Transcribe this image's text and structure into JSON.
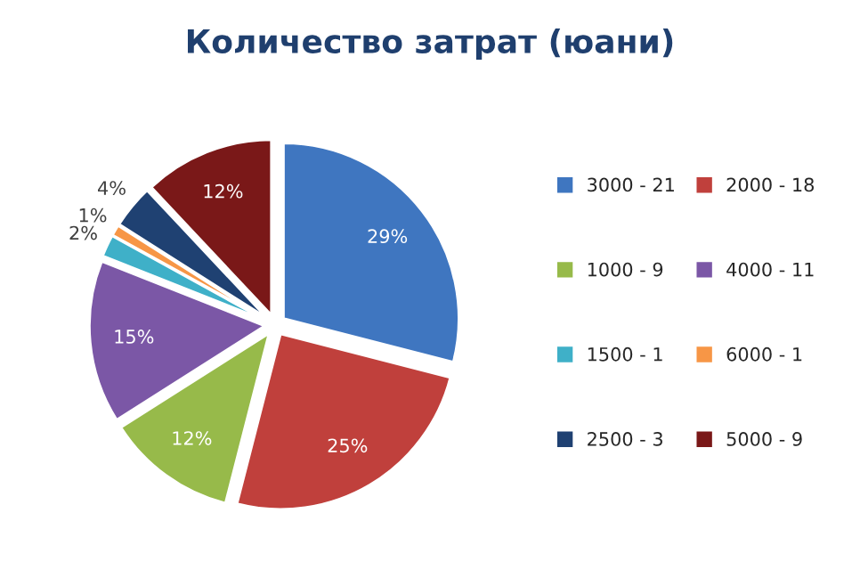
{
  "chart_data": {
    "type": "pie",
    "title": "Количество затрат (юани)",
    "categories": [
      "3000 - 21",
      "2000 - 18",
      "1000 - 9",
      "4000 - 11",
      "1500 - 1",
      "6000 - 1",
      "2500 - 3",
      "5000 - 9"
    ],
    "values": [
      29,
      25,
      12,
      15,
      2,
      1,
      4,
      12
    ],
    "value_labels": [
      "29%",
      "25%",
      "12%",
      "15%",
      "2%",
      "1%",
      "4%",
      "12%"
    ],
    "colors": [
      "#3f76c0",
      "#c0403c",
      "#97ba4a",
      "#7b57a6",
      "#3fb0c8",
      "#f79646",
      "#1f4172",
      "#7a1818"
    ],
    "legend": "right"
  }
}
